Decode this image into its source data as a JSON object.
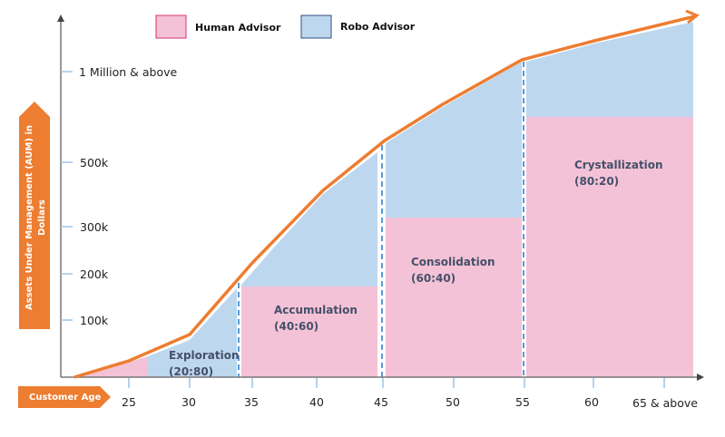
{
  "legend": {
    "human": {
      "label": "Human Advisor",
      "color": "#f4c2d6"
    },
    "robo": {
      "label": "Robo Advisor",
      "color": "#bdd7ee"
    }
  },
  "y_axis": {
    "label_line1": "Assets Under Management (AUM) in",
    "label_line2": "Dollars",
    "ticks": [
      "1 Million & above",
      "500k",
      "300k",
      "200k",
      "100k"
    ]
  },
  "x_axis": {
    "label": "Customer Age",
    "ticks": [
      "25",
      "30",
      "35",
      "40",
      "45",
      "50",
      "55",
      "60",
      "65 & above"
    ]
  },
  "stages": [
    {
      "name": "Exploration",
      "ratio": "(20:80)",
      "human_pct": 20,
      "robo_pct": 80
    },
    {
      "name": "Accumulation",
      "ratio": "(40:60)",
      "human_pct": 40,
      "robo_pct": 60
    },
    {
      "name": "Consolidation",
      "ratio": "(60:40)",
      "human_pct": 60,
      "robo_pct": 40
    },
    {
      "name": "Crystallization",
      "ratio": "(80:20)",
      "human_pct": 80,
      "robo_pct": 20
    }
  ],
  "colors": {
    "accent": "#ed7d31",
    "axis": "#777777",
    "tick": "#9dc3e6",
    "divider": "#5b9bd5"
  }
}
